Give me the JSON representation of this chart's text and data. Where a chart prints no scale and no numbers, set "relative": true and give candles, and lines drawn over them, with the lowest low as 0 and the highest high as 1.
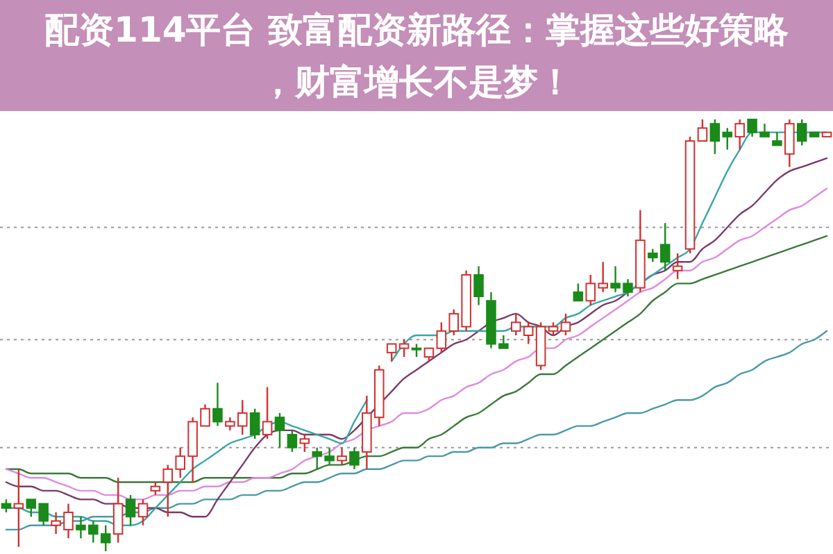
{
  "chart_data": {
    "type": "candlestick",
    "title": "配资114平台 致富配资新路径：掌握这些好策略，财富增长不是梦！",
    "relative": true,
    "categories": [
      null,
      null,
      null,
      null,
      null,
      null,
      null,
      null,
      null,
      null,
      null,
      null,
      null,
      null,
      null,
      null,
      null,
      null,
      null,
      null,
      null,
      null,
      null,
      null,
      null,
      null,
      null,
      null,
      null,
      null,
      null,
      null,
      null,
      null,
      null,
      null,
      null,
      null,
      null,
      null,
      null,
      null,
      null,
      null,
      null,
      null,
      null,
      null,
      null,
      null,
      null,
      null,
      null,
      null,
      null,
      null,
      null,
      null,
      null,
      null,
      null,
      null,
      null,
      null,
      null,
      null,
      null
    ],
    "ref_lines": [
      {
        "axis": "y",
        "value": 0.75,
        "color": "#999999",
        "line_style": "dotted"
      },
      {
        "axis": "y",
        "value": 0.49,
        "color": "#999999",
        "line_style": "dotted"
      },
      {
        "axis": "y",
        "value": 0.24,
        "color": "#999999",
        "line_style": "dotted"
      }
    ],
    "series": [
      {
        "type": "line",
        "color": "#4a9aa8",
        "values": [
          0.05,
          0.05,
          0.06,
          0.06,
          0.06,
          0.07,
          0.07,
          0.08,
          0.08,
          0.08,
          0.09,
          0.09,
          0.1,
          0.1,
          0.11,
          0.11,
          0.12,
          0.12,
          0.12,
          0.13,
          0.13,
          0.14,
          0.14,
          0.15,
          0.16,
          0.16,
          0.17,
          0.18,
          0.18,
          0.19,
          0.19,
          0.2,
          0.21,
          0.21,
          0.22,
          0.22,
          0.23,
          0.23,
          0.24,
          0.24,
          0.25,
          0.25,
          0.26,
          0.27,
          0.27,
          0.28,
          0.29,
          0.29,
          0.3,
          0.31,
          0.32,
          0.32,
          0.33,
          0.34,
          0.35,
          0.35,
          0.36,
          0.38,
          0.39,
          0.41,
          0.42,
          0.44,
          0.45,
          0.46,
          0.48,
          0.49,
          0.51
        ]
      },
      {
        "type": "line",
        "color": "#3a7a3a",
        "values": [
          0.19,
          0.19,
          0.18,
          0.18,
          0.18,
          0.18,
          0.17,
          0.17,
          0.17,
          0.16,
          0.16,
          0.16,
          0.16,
          0.16,
          0.16,
          0.16,
          0.17,
          0.17,
          0.17,
          0.17,
          0.17,
          0.17,
          0.17,
          0.18,
          0.18,
          0.19,
          0.2,
          0.2,
          0.21,
          0.22,
          0.22,
          0.23,
          0.24,
          0.24,
          0.26,
          0.27,
          0.29,
          0.31,
          0.32,
          0.34,
          0.36,
          0.37,
          0.39,
          0.41,
          0.41,
          0.43,
          0.45,
          0.47,
          0.49,
          0.51,
          0.53,
          0.55,
          0.58,
          0.6,
          0.62,
          0.62,
          0.63,
          0.64,
          0.65,
          0.66,
          0.67,
          0.68,
          0.69,
          0.7,
          0.71,
          0.72,
          0.73
        ]
      },
      {
        "type": "line",
        "color": "#e08ae0",
        "values": [
          0.19,
          0.18,
          0.17,
          0.17,
          0.16,
          0.15,
          0.14,
          0.14,
          0.13,
          0.13,
          0.12,
          0.12,
          0.13,
          0.13,
          0.14,
          0.14,
          0.15,
          0.15,
          0.16,
          0.16,
          0.17,
          0.17,
          0.18,
          0.19,
          0.21,
          0.22,
          0.23,
          0.25,
          0.26,
          0.28,
          0.29,
          0.3,
          0.32,
          0.32,
          0.33,
          0.35,
          0.36,
          0.38,
          0.39,
          0.41,
          0.42,
          0.44,
          0.45,
          0.47,
          0.47,
          0.49,
          0.5,
          0.52,
          0.54,
          0.56,
          0.58,
          0.6,
          0.61,
          0.63,
          0.65,
          0.65,
          0.67,
          0.68,
          0.7,
          0.72,
          0.73,
          0.75,
          0.77,
          0.79,
          0.8,
          0.82,
          0.84
        ]
      },
      {
        "type": "line",
        "color": "#7a3a6a",
        "values": [
          0.16,
          0.15,
          0.15,
          0.14,
          0.14,
          0.13,
          0.12,
          0.12,
          0.11,
          0.11,
          0.1,
          0.1,
          0.1,
          0.09,
          0.09,
          0.08,
          0.08,
          0.12,
          0.16,
          0.2,
          0.24,
          0.27,
          0.28,
          0.28,
          0.27,
          0.27,
          0.27,
          0.26,
          0.28,
          0.31,
          0.34,
          0.37,
          0.4,
          0.42,
          0.44,
          0.46,
          0.48,
          0.49,
          0.51,
          0.53,
          0.54,
          0.55,
          0.53,
          0.52,
          0.5,
          0.52,
          0.53,
          0.55,
          0.57,
          0.58,
          0.6,
          0.62,
          0.64,
          0.65,
          0.67,
          0.67,
          0.7,
          0.72,
          0.75,
          0.78,
          0.8,
          0.83,
          0.86,
          0.88,
          0.89,
          0.9,
          0.91
        ]
      },
      {
        "type": "line",
        "color": "#3aa6a6",
        "values": [
          0.1,
          0.1,
          0.09,
          0.09,
          0.08,
          0.08,
          0.08,
          0.07,
          0.07,
          0.06,
          0.06,
          0.07,
          0.1,
          0.13,
          0.16,
          0.19,
          0.21,
          0.23,
          0.25,
          0.26,
          0.27,
          0.29,
          0.3,
          0.29,
          0.28,
          0.27,
          0.26,
          0.25,
          0.3,
          0.35,
          null,
          0.44,
          0.48,
          0.5,
          0.5,
          0.5,
          0.51,
          0.51,
          0.51,
          0.51,
          0.51,
          0.52,
          0.52,
          0.52,
          0.52,
          0.54,
          0.55,
          0.57,
          0.58,
          0.59,
          0.6,
          0.62,
          0.64,
          0.66,
          0.68,
          0.7,
          0.76,
          0.82,
          0.88,
          0.93,
          0.97,
          0.97,
          0.97,
          0.97,
          0.97,
          0.97,
          0.97
        ]
      },
      {
        "colors": [
          "#1a8a1a",
          "#d03030",
          "#1a8a1a",
          "#1a8a1a",
          "#d03030",
          "#d03030",
          "#1a8a1a",
          "#1a8a1a",
          "#1a8a1a",
          "#d03030",
          "#1a8a1a",
          "#d03030",
          "#d03030",
          "#d03030",
          "#d03030",
          "#d03030",
          "#d03030",
          "#1a8a1a",
          "#d03030",
          "#d03030",
          "#1a8a1a",
          "#d03030",
          "#1a8a1a",
          "#1a8a1a",
          "#d03030",
          "#1a8a1a",
          "#1a8a1a",
          "#d03030",
          "#1a8a1a",
          "#d03030",
          "#d03030",
          "#d03030",
          "#d03030",
          "#1a8a1a",
          "#d03030",
          "#d03030",
          "#d03030",
          "#d03030",
          "#1a8a1a",
          "#1a8a1a",
          "#1a8a1a",
          "#d03030",
          "#d03030",
          "#d03030",
          "#d03030",
          "#d03030",
          "#1a8a1a",
          "#d03030",
          "#d03030",
          "#1a8a1a",
          "#1a8a1a",
          "#d03030",
          "#1a8a1a",
          "#1a8a1a",
          "#d03030",
          "#d03030",
          "#d03030",
          "#1a8a1a",
          "#1a8a1a",
          "#d03030",
          "#1a8a1a",
          "#1a8a1a",
          "#1a8a1a",
          "#d03030",
          "#1a8a1a",
          "#1a8a1a",
          "#d03030"
        ],
        "ohlc": [
          [
            0.11,
            0.12,
            0.09,
            0.1
          ],
          [
            0.1,
            0.19,
            0.01,
            0.11
          ],
          [
            0.12,
            0.12,
            0.08,
            0.1
          ],
          [
            0.11,
            0.11,
            0.06,
            0.07
          ],
          [
            0.06,
            0.09,
            0.04,
            0.07
          ],
          [
            0.05,
            0.11,
            0.03,
            0.09
          ],
          [
            0.06,
            0.08,
            0.03,
            0.05
          ],
          [
            0.06,
            0.07,
            0.02,
            0.04
          ],
          [
            0.04,
            0.06,
            0,
            0.02
          ],
          [
            0.04,
            0.17,
            0.02,
            0.11
          ],
          [
            0.12,
            0.13,
            0.06,
            0.08
          ],
          [
            0.08,
            0.12,
            0.06,
            0.11
          ],
          [
            0.14,
            0.16,
            0.13,
            0.15
          ],
          [
            0.16,
            0.2,
            0.08,
            0.19
          ],
          [
            0.19,
            0.24,
            0.17,
            0.22
          ],
          [
            0.22,
            0.31,
            0.16,
            0.3
          ],
          [
            0.29,
            0.34,
            0.29,
            0.33
          ],
          [
            0.33,
            0.39,
            0.29,
            0.3
          ],
          [
            0.29,
            0.31,
            0.28,
            0.3
          ],
          [
            0.29,
            0.35,
            0.27,
            0.32
          ],
          [
            0.32,
            0.33,
            0.26,
            0.27
          ],
          [
            0.27,
            0.38,
            0.26,
            0.3
          ],
          [
            0.31,
            0.32,
            0.24,
            0.28
          ],
          [
            0.27,
            0.28,
            0.23,
            0.24
          ],
          [
            0.25,
            0.27,
            0.23,
            0.26
          ],
          [
            0.23,
            0.24,
            0.19,
            0.22
          ],
          [
            0.22,
            0.24,
            0.2,
            0.21
          ],
          [
            0.21,
            0.24,
            0.2,
            0.22
          ],
          [
            0.23,
            0.24,
            0.19,
            0.2
          ],
          [
            0.23,
            0.36,
            0.19,
            0.32
          ],
          [
            0.31,
            0.43,
            0.29,
            0.42
          ],
          [
            0.46,
            0.48,
            0.44,
            0.48
          ],
          [
            0.47,
            0.49,
            0.45,
            0.48
          ],
          [
            0.47,
            0.48,
            0.45,
            0.47
          ],
          [
            0.45,
            0.47,
            0.44,
            0.47
          ],
          [
            0.47,
            0.53,
            0.46,
            0.51
          ],
          [
            0.51,
            0.56,
            0.5,
            0.55
          ],
          [
            0.52,
            0.65,
            0.51,
            0.64
          ],
          [
            0.64,
            0.66,
            0.57,
            0.59
          ],
          [
            0.58,
            0.6,
            0.47,
            0.48
          ],
          [
            0.48,
            0.5,
            0.47,
            0.47
          ],
          [
            0.51,
            0.55,
            0.5,
            0.53
          ],
          [
            0.5,
            0.53,
            0.48,
            0.52
          ],
          [
            0.43,
            0.53,
            0.42,
            0.52
          ],
          [
            0.51,
            0.53,
            0.5,
            0.52
          ],
          [
            0.51,
            0.55,
            0.5,
            0.53
          ],
          [
            0.6,
            0.62,
            0.58,
            0.58
          ],
          [
            0.58,
            0.64,
            0.57,
            0.62
          ],
          [
            0.61,
            0.67,
            0.6,
            0.62
          ],
          [
            0.62,
            0.66,
            0.6,
            0.61
          ],
          [
            0.62,
            0.63,
            0.59,
            0.6
          ],
          [
            0.61,
            0.79,
            0.6,
            0.72
          ],
          [
            0.69,
            0.7,
            0.67,
            0.68
          ],
          [
            0.71,
            0.76,
            0.65,
            0.67
          ],
          [
            0.65,
            0.69,
            0.63,
            0.66
          ],
          [
            0.7,
            0.96,
            0.69,
            0.95
          ],
          [
            0.95,
            1,
            0.95,
            0.98
          ],
          [
            0.99,
            1,
            0.92,
            0.95
          ],
          [
            0.97,
            0.98,
            0.93,
            0.96
          ],
          [
            0.96,
            1,
            0.93,
            0.99
          ],
          [
            1,
            1,
            0.96,
            0.97
          ],
          [
            0.97,
            0.99,
            0.96,
            0.96
          ],
          [
            0.95,
            0.97,
            0.94,
            0.94
          ],
          [
            0.92,
            1,
            0.89,
            0.99
          ],
          [
            0.99,
            1,
            0.94,
            0.95
          ],
          [
            0.97,
            0.97,
            0.96,
            0.96
          ],
          [
            0.96,
            0.97,
            0.96,
            0.97
          ]
        ]
      }
    ]
  }
}
